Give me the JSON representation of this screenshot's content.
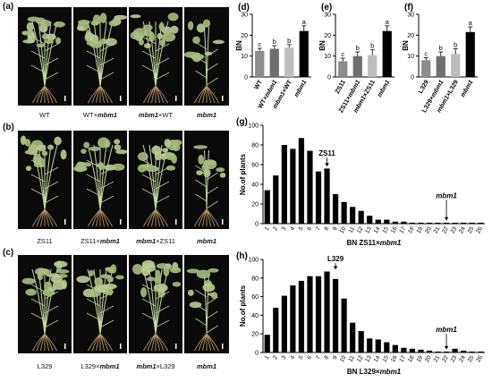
{
  "panels": {
    "a": {
      "label": "(a)",
      "captions": [
        {
          "parts": [
            {
              "t": "WT",
              "i": false
            }
          ]
        },
        {
          "parts": [
            {
              "t": "WT×",
              "i": false
            },
            {
              "t": "mbm1",
              "i": true
            }
          ]
        },
        {
          "parts": [
            {
              "t": "mbm1",
              "i": true
            },
            {
              "t": "×WT",
              "i": false
            }
          ]
        },
        {
          "parts": [
            {
              "t": "mbm1",
              "i": true
            }
          ]
        }
      ]
    },
    "b": {
      "label": "(b)",
      "captions": [
        {
          "parts": [
            {
              "t": "ZS11",
              "i": false
            }
          ]
        },
        {
          "parts": [
            {
              "t": "ZS11×",
              "i": false
            },
            {
              "t": "mbm1",
              "i": true
            }
          ]
        },
        {
          "parts": [
            {
              "t": "mbm1",
              "i": true
            },
            {
              "t": "×ZS11",
              "i": false
            }
          ]
        },
        {
          "parts": [
            {
              "t": "mbm1",
              "i": true
            }
          ]
        }
      ]
    },
    "c": {
      "label": "(c)",
      "captions": [
        {
          "parts": [
            {
              "t": "L329",
              "i": false
            }
          ]
        },
        {
          "parts": [
            {
              "t": "L329×",
              "i": false
            },
            {
              "t": "mbm1",
              "i": true
            }
          ]
        },
        {
          "parts": [
            {
              "t": "mbm1",
              "i": true
            },
            {
              "t": "×L329",
              "i": false
            }
          ]
        },
        {
          "parts": [
            {
              "t": "mbm1",
              "i": true
            }
          ]
        }
      ]
    }
  },
  "chart_data": [
    {
      "id": "d",
      "panel_label": "(d)",
      "type": "bar",
      "ylabel": "BN",
      "ylim": [
        0,
        30
      ],
      "yticks": [
        0,
        10,
        20,
        30
      ],
      "categories": [
        "WT",
        "WT×mbm1",
        "mbm1×WT",
        "mbm1"
      ],
      "values": [
        12.5,
        13.5,
        14,
        22
      ],
      "errors": [
        1.2,
        1.5,
        1.5,
        2.5
      ],
      "letters": [
        "c",
        "b",
        "b",
        "a"
      ],
      "colors": [
        "#8c8c8c",
        "#6e6e6e",
        "#bdbdbd",
        "#000000"
      ]
    },
    {
      "id": "e",
      "panel_label": "(e)",
      "type": "bar",
      "ylabel": "BN",
      "ylim": [
        0,
        30
      ],
      "yticks": [
        0,
        10,
        20,
        30
      ],
      "categories": [
        "ZS11",
        "ZS11×mbm1",
        "mbm1×ZS11",
        "mbm1"
      ],
      "values": [
        7.5,
        10,
        10.5,
        22
      ],
      "errors": [
        1.5,
        2,
        2.5,
        2.5
      ],
      "letters": [
        "c",
        "b",
        "b",
        "a"
      ],
      "colors": [
        "#8c8c8c",
        "#6e6e6e",
        "#bdbdbd",
        "#000000"
      ]
    },
    {
      "id": "f",
      "panel_label": "(f)",
      "type": "bar",
      "ylabel": "BN",
      "ylim": [
        0,
        30
      ],
      "yticks": [
        0,
        10,
        20,
        30
      ],
      "categories": [
        "L329",
        "L329×mbm1",
        "mbm1×L329",
        "mbm1"
      ],
      "values": [
        8,
        10,
        11,
        21.5
      ],
      "errors": [
        1.2,
        2,
        2.5,
        2.5
      ],
      "letters": [
        "c",
        "b",
        "b",
        "a"
      ],
      "colors": [
        "#8c8c8c",
        "#6e6e6e",
        "#bdbdbd",
        "#000000"
      ]
    },
    {
      "id": "g",
      "panel_label": "(g)",
      "type": "bar",
      "ylabel": "No.of plants",
      "ylim": [
        0,
        100
      ],
      "yticks": [
        0,
        20,
        40,
        60,
        80,
        100
      ],
      "xlabel_parts": [
        {
          "t": "BN  ZS11×",
          "i": false
        },
        {
          "t": "mbm1",
          "i": true
        }
      ],
      "categories": [
        "1",
        "2",
        "3",
        "4",
        "5",
        "6",
        "7",
        "8",
        "9",
        "10",
        "11",
        "12",
        "13",
        "14",
        "15",
        "16",
        "17",
        "18",
        "19",
        "20",
        "21",
        "22",
        "23",
        "24",
        "25",
        "26"
      ],
      "values": [
        34,
        49,
        80,
        76,
        87,
        74,
        53,
        56,
        30,
        22,
        17,
        13,
        8,
        4,
        4,
        2,
        2,
        1,
        1,
        1,
        1,
        1,
        1,
        1,
        1,
        1
      ],
      "annotations": [
        {
          "text": "ZS11",
          "italic": false,
          "category": "8",
          "y_text": 69,
          "y_arrow_end": 58
        },
        {
          "text": "mbm1",
          "italic": true,
          "category": "22",
          "y_text": 26,
          "y_arrow_end": 3
        }
      ]
    },
    {
      "id": "h",
      "panel_label": "(h)",
      "type": "bar",
      "ylabel": "No.of plants",
      "ylim": [
        0,
        100
      ],
      "yticks": [
        0,
        20,
        40,
        60,
        80,
        100
      ],
      "xlabel_parts": [
        {
          "t": "BN  L329×",
          "i": false
        },
        {
          "t": "mbm1",
          "i": true
        }
      ],
      "categories": [
        "1",
        "2",
        "3",
        "4",
        "5",
        "6",
        "7",
        "8",
        "9",
        "10",
        "11",
        "12",
        "13",
        "14",
        "15",
        "16",
        "17",
        "18",
        "19",
        "20",
        "21",
        "22",
        "23",
        "24",
        "25",
        "26"
      ],
      "values": [
        19,
        48,
        61,
        72,
        77,
        82,
        82,
        87,
        79,
        58,
        32,
        23,
        15,
        14,
        11,
        8,
        5,
        4,
        3,
        2,
        1,
        1,
        4,
        2,
        1,
        1
      ],
      "annotations": [
        {
          "text": "L329",
          "italic": false,
          "category": "9",
          "y_text": 98,
          "y_arrow_end": 89
        },
        {
          "text": "mbm1",
          "italic": true,
          "category": "22",
          "y_text": 22,
          "y_arrow_end": 3
        }
      ]
    }
  ]
}
